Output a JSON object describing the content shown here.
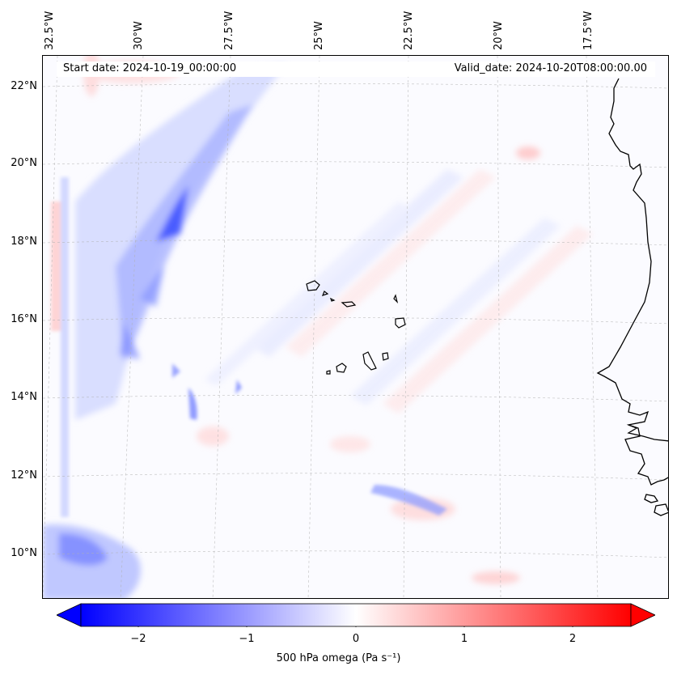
{
  "header": {
    "start_date": "Start date: 2024-10-19_00:00:00",
    "valid_date": "Valid_date: 2024-10-20T08:00:00.00"
  },
  "axes": {
    "lon_labels": [
      "32.5°W",
      "30°W",
      "27.5°W",
      "25°W",
      "22.5°W",
      "20°W",
      "17.5°W"
    ],
    "lat_labels": [
      "22°N",
      "20°N",
      "18°N",
      "16°N",
      "14°N",
      "12°N",
      "10°N"
    ]
  },
  "colorbar": {
    "ticks": [
      "−2",
      "−1",
      "0",
      "1",
      "2"
    ],
    "label": "500 hPa omega (Pa s⁻¹)",
    "range": [
      -2.6,
      2.6
    ],
    "neg_color": "#0000ff",
    "zero_color": "#ffffff",
    "pos_color": "#ff0000"
  },
  "colors": {
    "coastline": "#000000",
    "gridline": "#b0b0b0"
  }
}
